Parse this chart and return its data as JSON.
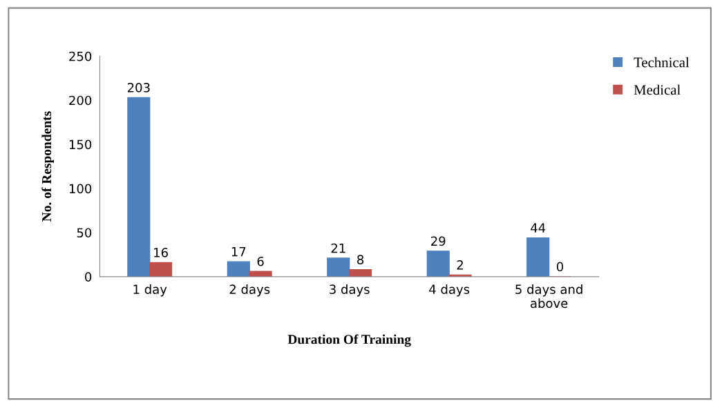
{
  "chart_data": {
    "type": "bar",
    "xlabel": "Duration Of Training",
    "ylabel": "No. of Respondents",
    "categories": [
      "1 day",
      "2 days",
      "3 days",
      "4 days",
      "5 days and\nabove"
    ],
    "series": [
      {
        "name": "Technical",
        "color": "#4f81bd",
        "values": [
          203,
          17,
          21,
          29,
          44
        ]
      },
      {
        "name": "Medical",
        "color": "#c0504d",
        "values": [
          16,
          6,
          8,
          2,
          0
        ]
      }
    ],
    "ylim": [
      0,
      250
    ],
    "yticks": [
      0,
      50,
      100,
      150,
      200,
      250
    ],
    "data_labels": true,
    "legend": "top right",
    "grid": false
  }
}
